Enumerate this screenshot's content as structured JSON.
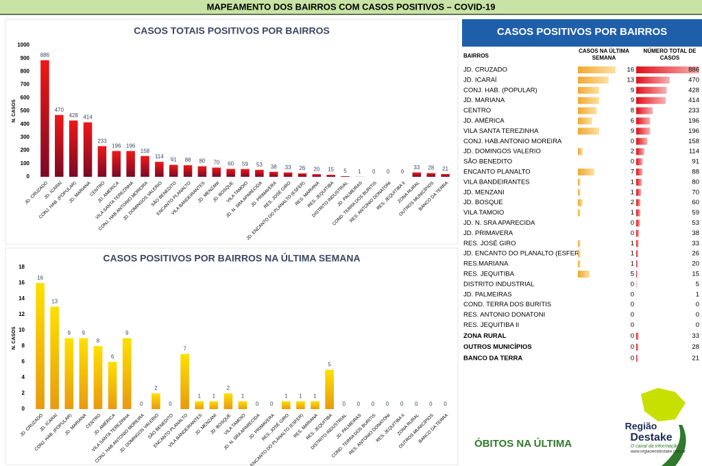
{
  "header": {
    "title": "MAPEAMENTO DOS BAIRROS COM CASOS POSITIVOS – COVID-19"
  },
  "chart_data": [
    {
      "type": "bar",
      "title": "CASOS TOTAIS POSITIVOS POR BAIRROS",
      "y_label": "N. CASOS",
      "color": "#e8151b",
      "categories": [
        "JD. CRUZADO",
        "JD. ICARAÍ",
        "CONJ. HAB. (POPULAR)",
        "JD. MARIANA",
        "CENTRO",
        "JD. AMÉRICA",
        "VILA SANTA TEREZINHA",
        "CONJ. HAB.ANTONIO MOREIRA",
        "JD. DOMINGOS VALERIO",
        "SÃO BENEDITO",
        "ENCANTO PLANALTO",
        "VILA BANDEIRANTES",
        "JD. MENZANI",
        "JD. BOSQUE",
        "VILA TAMOIO",
        "JD. N. SRA APARECIDA",
        "JD. PRIMAVERA",
        "RES. JOSÉ GIRO",
        "JD. ENCANTO DO PLANALTO (ESFER)",
        "RES. MARIANA",
        "RES. JEQUITIBA",
        "DISTRITO INDUSTRIAL",
        "JD. PALMEIRAS",
        "COND. TERRA DOS BURITIS",
        "RES. ANTONIO DONATONI",
        "RES. JEQUITIBA II",
        "ZONA RURAL",
        "OUTROS MUNICÍPIOS",
        "BANCO DA TERRA"
      ],
      "values": [
        886,
        470,
        428,
        414,
        233,
        196,
        196,
        158,
        114,
        91,
        88,
        80,
        70,
        60,
        59,
        53,
        38,
        33,
        26,
        20,
        15,
        5,
        1,
        0,
        0,
        0,
        33,
        28,
        21
      ],
      "ylim": [
        0,
        1000
      ],
      "yticks": [
        0,
        100,
        200,
        300,
        400,
        500,
        600,
        700,
        800,
        900,
        1000
      ]
    },
    {
      "type": "bar",
      "title": "CASOS POSITIVOS POR BAIRROS NA ÚLTIMA SEMANA",
      "y_label": "N. CASOS",
      "color": "#f5c400",
      "categories": [
        "JD. CRUZADO",
        "JD. ICARAÍ",
        "CONJ. HAB. (POPULAR)",
        "JD. MARIANA",
        "CENTRO",
        "JD. AMÉRICA",
        "VILA SANTA TEREZINHA",
        "CONJ. HAB.ANTONIO MOREIRA",
        "JD. DOMINGOS VALERIO",
        "SÃO BENEDITO",
        "ENCANTO PLANALTO",
        "VILA BANDEIRANTES",
        "JD. MENZANI",
        "JD. BOSQUE",
        "VILA TAMOIO",
        "JD. N. SRA APARECIDA",
        "JD. PRIMAVERA",
        "RES. JOSÉ GIRO",
        "JD. ENCANTO DO PLANALTO (ESFER)",
        "RES. MARIANA",
        "RES. JEQUITIBA",
        "DISTRITO INDUSTRIAL",
        "JD. PALMEIRAS",
        "COND. TERRA DOS BURITIS",
        "RES. ANTONIO DONATONI",
        "RES. JEQUITIBA II",
        "ZONA RURAL",
        "OUTROS MUNICÍPIOS",
        "BANCO DA TERRA"
      ],
      "values": [
        16,
        13,
        9,
        9,
        8,
        6,
        9,
        0,
        2,
        0,
        7,
        1,
        1,
        2,
        1,
        0,
        0,
        1,
        1,
        1,
        5,
        0,
        0,
        0,
        0,
        0,
        0,
        0,
        0
      ],
      "ylim": [
        0,
        18
      ],
      "yticks": [
        0,
        2,
        4,
        6,
        8,
        10,
        12,
        14,
        16,
        18
      ]
    }
  ],
  "table": {
    "title": "CASOS POSITIVOS POR BAIRROS",
    "columns": [
      "BAIRROS",
      "CASOS NA ÚLTIMA SEMANA",
      "NÚMERO TOTAL DE CASOS"
    ],
    "rows": [
      [
        "JD. CRUZADO",
        16,
        886
      ],
      [
        "JD. ICARAÍ",
        13,
        470
      ],
      [
        "CONJ. HAB. (POPULAR)",
        9,
        428
      ],
      [
        "JD. MARIANA",
        9,
        414
      ],
      [
        "CENTRO",
        8,
        233
      ],
      [
        "JD. AMÉRICA",
        6,
        196
      ],
      [
        "VILA SANTA TEREZINHA",
        9,
        196
      ],
      [
        "CONJ. HAB.ANTONIO MOREIRA",
        0,
        158
      ],
      [
        "JD. DOMINGOS VALERIO",
        2,
        114
      ],
      [
        "SÃO BENEDITO",
        0,
        91
      ],
      [
        "ENCANTO PLANALTO",
        7,
        88
      ],
      [
        "VILA BANDEIRANTES",
        1,
        80
      ],
      [
        "JD. MENZANI",
        1,
        70
      ],
      [
        "JD. BOSQUE",
        2,
        60
      ],
      [
        "VILA TAMOIO",
        1,
        59
      ],
      [
        "JD. N. SRA APARECIDA",
        0,
        53
      ],
      [
        "JD. PRIMAVERA",
        0,
        38
      ],
      [
        "RES. JOSÉ GIRO",
        1,
        33
      ],
      [
        "JD. ENCANTO DO PLANALTO (ESFER",
        1,
        26
      ],
      [
        "RES.MARIANA",
        1,
        20
      ],
      [
        "RES. JEQUITIBA",
        5,
        15
      ],
      [
        "DISTRITO INDUSTRIAL",
        0,
        5
      ],
      [
        "JD. PALMEIRAS",
        0,
        1
      ],
      [
        "COND. TERRA DOS BURITIS",
        0,
        0
      ],
      [
        "RES. ANTONIO DONATONI",
        0,
        0
      ],
      [
        "RES. JEQUITIBA II",
        0,
        0
      ],
      [
        "ZONA RURAL",
        0,
        33
      ],
      [
        "OUTROS MUNICÍPIOS",
        0,
        28
      ],
      [
        "BANCO DA TERRA",
        0,
        21
      ]
    ]
  },
  "footer": {
    "deaths_title": "ÓBITOS NA ÚLTIMA",
    "brand_line1": "Região",
    "brand_line2": "Destake",
    "slogan": "O canal da informação",
    "url": "www.regiaoemdestake.com.br"
  }
}
